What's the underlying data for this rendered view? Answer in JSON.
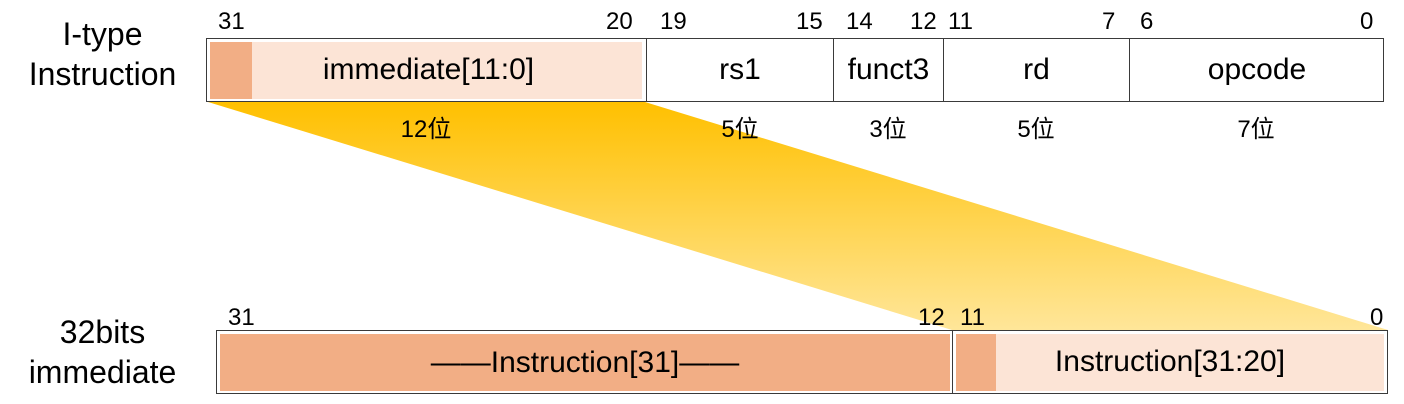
{
  "colors": {
    "sign_bit": "#f2ae85",
    "immediate_bg": "#fce4d6",
    "extension_bg": "#f2ae85",
    "projection_top": "#ffc000",
    "projection_bottom": "#ffe699",
    "border": "#3a3a3a"
  },
  "top_row": {
    "label_line1": "I-type",
    "label_line2": "Instruction",
    "bit_numbers": {
      "b31": "31",
      "b20": "20",
      "b19": "19",
      "b15": "15",
      "b14": "14",
      "b12": "12",
      "b11": "11",
      "b7": "7",
      "b6": "6",
      "b0": "0"
    },
    "fields": {
      "immediate": "immediate[11:0]",
      "rs1": "rs1",
      "funct3": "funct3",
      "rd": "rd",
      "opcode": "opcode"
    },
    "widths": {
      "immediate": "12位",
      "rs1": "5位",
      "funct3": "3位",
      "rd": "5位",
      "opcode": "7位"
    }
  },
  "bottom_row": {
    "label_line1": "32bits",
    "label_line2": "immediate",
    "bit_numbers": {
      "b31": "31",
      "b12": "12",
      "b11": "11",
      "b0": "0"
    },
    "fields": {
      "extension": "——Instruction[31]——",
      "immediate": "Instruction[31:20]"
    }
  }
}
